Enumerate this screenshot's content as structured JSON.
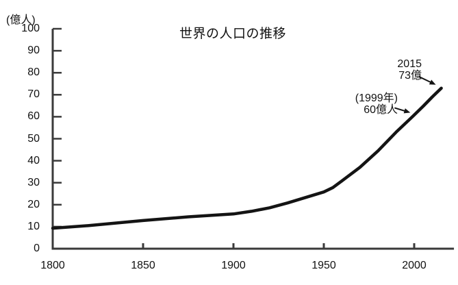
{
  "page": {
    "background_color": "#ffffff",
    "text_color": "#111111"
  },
  "chart_data": {
    "type": "line",
    "title": "世界の人口の推移",
    "y_unit_label": "(億人)",
    "xlabel": "",
    "ylabel": "億人",
    "xlim": [
      1800,
      2022
    ],
    "ylim": [
      0,
      100
    ],
    "grid": false,
    "legend": "none",
    "axis_color": "#3a3a3a",
    "line_color": "#141414",
    "x_ticks": [
      1800,
      1850,
      1900,
      1950,
      2000
    ],
    "y_ticks": [
      0,
      10,
      20,
      30,
      40,
      50,
      60,
      70,
      80,
      90,
      100
    ],
    "series": [
      {
        "points": [
          {
            "year": 1800,
            "value": 9.3
          },
          {
            "year": 1820,
            "value": 10.5
          },
          {
            "year": 1850,
            "value": 12.8
          },
          {
            "year": 1875,
            "value": 14.5
          },
          {
            "year": 1900,
            "value": 15.8
          },
          {
            "year": 1910,
            "value": 17.0
          },
          {
            "year": 1920,
            "value": 18.6
          },
          {
            "year": 1930,
            "value": 20.8
          },
          {
            "year": 1940,
            "value": 23.3
          },
          {
            "year": 1950,
            "value": 25.8
          },
          {
            "year": 1955,
            "value": 27.8
          },
          {
            "year": 1960,
            "value": 30.8
          },
          {
            "year": 1970,
            "value": 37.0
          },
          {
            "year": 1980,
            "value": 44.5
          },
          {
            "year": 1990,
            "value": 53.0
          },
          {
            "year": 1999,
            "value": 60.0
          },
          {
            "year": 2005,
            "value": 64.8
          },
          {
            "year": 2010,
            "value": 69.0
          },
          {
            "year": 2015,
            "value": 73.0
          }
        ]
      }
    ],
    "annotations": [
      {
        "lines": [
          "2015",
          "73億"
        ],
        "target": {
          "year": 2015,
          "value": 73
        }
      },
      {
        "lines": [
          "(1999年)",
          "60億人"
        ],
        "target": {
          "year": 1999,
          "value": 60
        }
      }
    ]
  }
}
